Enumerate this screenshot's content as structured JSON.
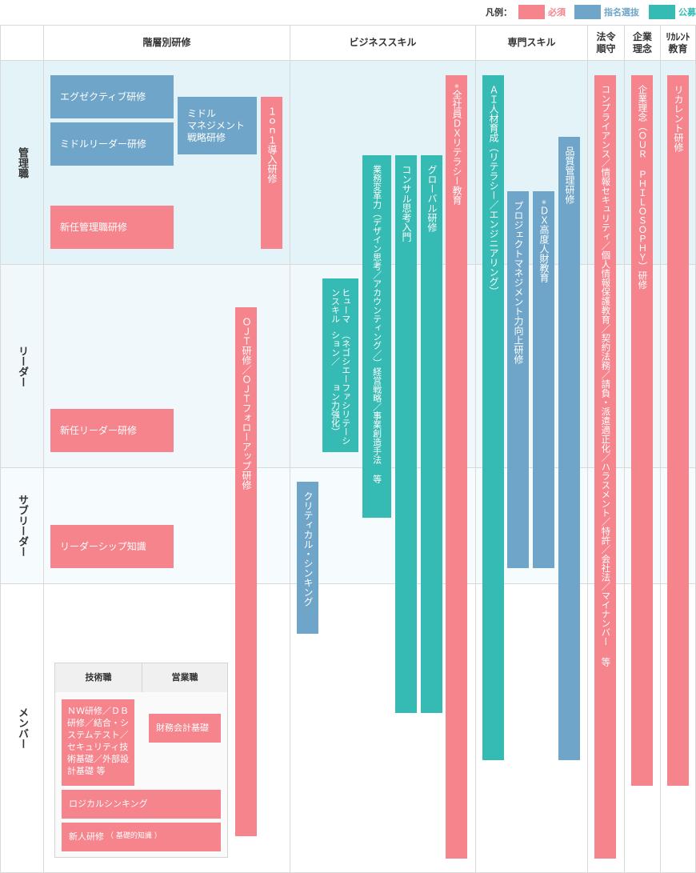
{
  "legend": {
    "title": "凡例：",
    "items": [
      {
        "label": "必須",
        "color": "#f5848d"
      },
      {
        "label": "指名選抜",
        "color": "#6fa5c8"
      },
      {
        "label": "公募",
        "color": "#35bbb3"
      }
    ]
  },
  "columns": {
    "tiered": "階層別研修",
    "business": "ビジネススキル",
    "specialist": "専門スキル",
    "compliance": "法令\n順守",
    "philosophy": "企業\n理念",
    "recurrent": "ﾘｶﾚﾝﾄ\n教育"
  },
  "rows": {
    "manager": "管理職",
    "leader": "リーダー",
    "subleader": "サブリーダー",
    "member": "メンバー"
  },
  "programs": {
    "executive": "エグゼクティブ研修",
    "middle_leader": "ミドルリーダー研修",
    "middle_mgmt": "ミドル\nマネジメント\n戦略研修",
    "new_manager": "新任管理職研修",
    "one_on_one": "１ｏｎ１導入研修",
    "new_leader": "新任リーダー研修",
    "leadership": "リーダーシップ知識",
    "ojt": "ＯＪＴ研修／ＯＪＴフォローアップ研修",
    "human_skill_1": "ヒューマンスキル",
    "human_skill_2": "（ネゴシエーション／",
    "human_skill_3": "ファシリテーション力強化）",
    "biz_reform_1": "業務変革力（デザイン思考／アカウンティング／）",
    "biz_reform_2": "経営戦略／事業創造手法 等",
    "consult": "コンサル思考入門",
    "global": "グローバル研修",
    "dx_literacy_mark": "※",
    "dx_literacy": "全社員ＤＸリテラシー教育",
    "critical": "クリティカル・シンキング",
    "ai": "ＡＩ人材育成（リテラシー／エンジニアリング）",
    "pm": "プロジェクトマネジメント力向上研修",
    "dx_advanced_mark": "※",
    "dx_advanced": "ＤＸ高度人財教育",
    "quality": "品質管理研修",
    "compliance": "コンプライアンス／情報セキュリティ／個人情報保護教育／契約法務／請負・派遣適正化／ハラスメント／特許／会社法／マイナンバー 等",
    "philosophy": "企業理念（ＯＵＲ ＰＨＩＬＯＳＯＰＨＹ）研修",
    "recurrent": "リカレント研修",
    "tech_header": "技術職",
    "sales_header": "営業職",
    "tech_basic": "ＮＷ研修／ＤＢ\n研修／結合・シ\nステムテスト／\nセキュリティ技\n術基礎／外部設\n計基礎 等",
    "accounting": "財務会計基礎",
    "logical": "ロジカルシンキング",
    "newcomer": "新人研修",
    "newcomer_note": "（ 基礎的知識 ）"
  }
}
